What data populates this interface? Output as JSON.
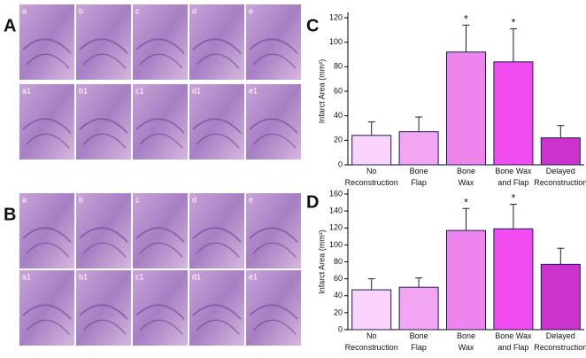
{
  "histology": [
    {
      "label": "A",
      "images": [
        "a",
        "b",
        "c",
        "d",
        "e",
        "a1",
        "b1",
        "c1",
        "d1",
        "e1"
      ]
    },
    {
      "label": "B",
      "images": [
        "a",
        "b",
        "c",
        "d",
        "e",
        "a1",
        "b1",
        "c1",
        "d1",
        "e1"
      ]
    }
  ],
  "chart_data": [
    {
      "type": "bar",
      "label": "C",
      "y_label": "Infarct Area (mm²)",
      "categories": [
        "No\nReconstruction",
        "Bone\nFlap",
        "Bone\nWax",
        "Bone Wax\nand Flap",
        "Delayed\nReconstruction"
      ],
      "values": [
        24,
        27,
        92,
        84,
        22
      ],
      "errors": [
        11,
        12,
        22,
        27,
        10
      ],
      "colors": [
        "#f9d3f9",
        "#f2a6f2",
        "#ee84ee",
        "#f04cf0",
        "#cc33cc"
      ],
      "annotations": [
        {
          "text": "*",
          "category": "Bone\nWax"
        },
        {
          "text": "*",
          "category": "Bone Wax\nand Flap"
        }
      ],
      "ylim": [
        0,
        120
      ],
      "yticks": [
        0,
        20,
        40,
        60,
        80,
        100,
        120
      ]
    },
    {
      "type": "bar",
      "label": "D",
      "y_label": "Infarct Area (mm²)",
      "categories": [
        "No\nReconstruction",
        "Bone\nFlap",
        "Bone\nWax",
        "Bone Wax\nand Flap",
        "Delayed\nReconstruction"
      ],
      "values": [
        47,
        50,
        117,
        119,
        77
      ],
      "errors": [
        13,
        11,
        26,
        29,
        19
      ],
      "colors": [
        "#f9d3f9",
        "#f2a6f2",
        "#ee84ee",
        "#f04cf0",
        "#cc33cc"
      ],
      "annotations": [
        {
          "text": "*",
          "category": "Bone\nWax"
        },
        {
          "text": "*",
          "category": "Bone Wax\nand Flap"
        }
      ],
      "ylim": [
        0,
        160
      ],
      "yticks": [
        0,
        20,
        40,
        60,
        80,
        100,
        120,
        140,
        160
      ]
    }
  ]
}
